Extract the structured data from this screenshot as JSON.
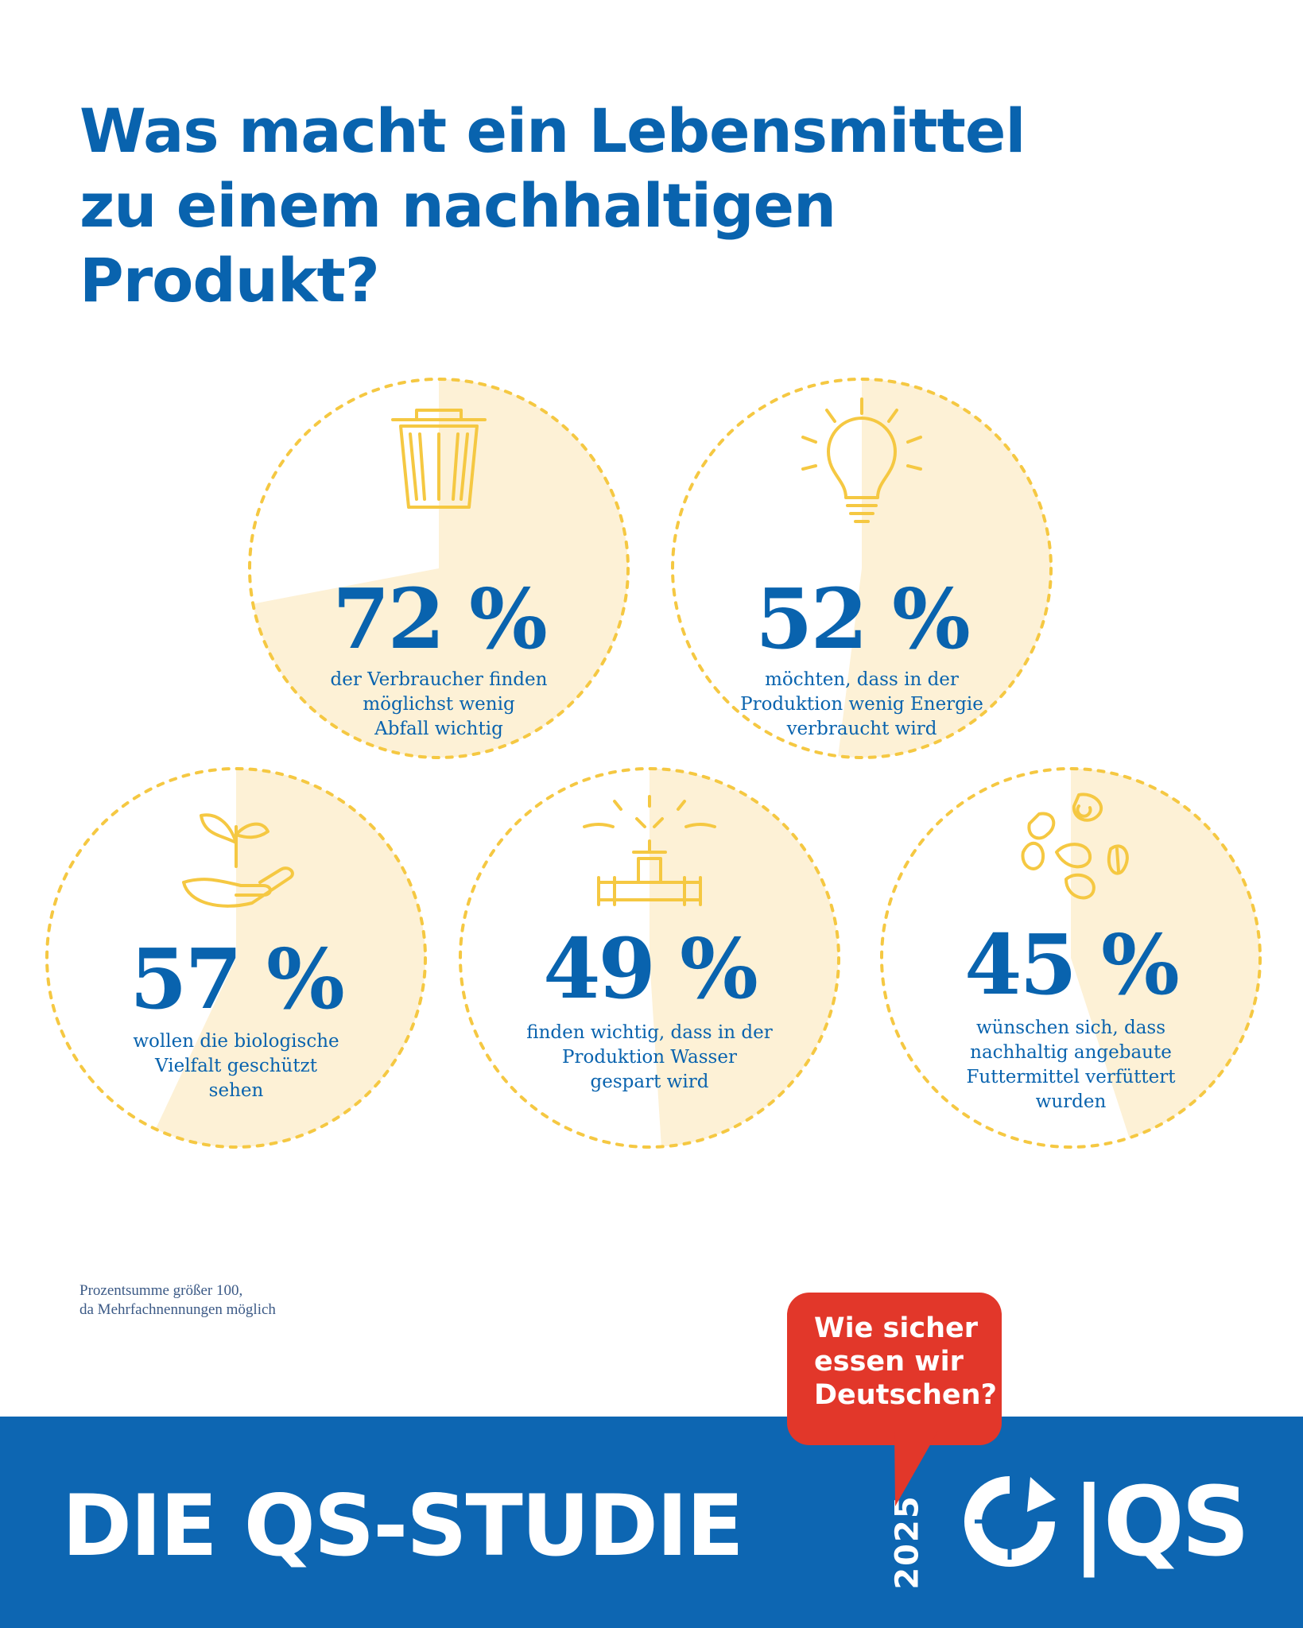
{
  "title_lines": [
    "Was macht ein Lebensmittel",
    "zu einem nachhaltigen",
    "Produkt?"
  ],
  "colors": {
    "blue": "#0963ae",
    "yellow": "#f5c842",
    "fill": "#fdf1d6",
    "banner": "#0d66b2",
    "bubble": "#e2372a"
  },
  "chart_data": {
    "type": "pie",
    "title": "Was macht ein Lebensmittel zu einem nachhaltigen Produkt?",
    "unit": "%",
    "items": [
      {
        "value": 72,
        "label": "72 %",
        "description": [
          "der Verbraucher finden",
          "möglichst wenig",
          "Abfall wichtig"
        ],
        "icon": "trash-can-icon"
      },
      {
        "value": 52,
        "label": "52 %",
        "description": [
          "möchten, dass in der",
          "Produktion wenig Energie",
          "verbraucht wird"
        ],
        "icon": "light-bulb-icon"
      },
      {
        "value": 57,
        "label": "57 %",
        "description": [
          "wollen die biologische",
          "Vielfalt geschützt",
          "sehen"
        ],
        "icon": "plant-in-hand-icon"
      },
      {
        "value": 49,
        "label": "49 %",
        "description": [
          "finden wichtig, dass in der",
          "Produktion Wasser",
          "gespart wird"
        ],
        "icon": "water-tap-icon"
      },
      {
        "value": 45,
        "label": "45 %",
        "description": [
          "wünschen sich, dass",
          "nachhaltig angebaute",
          "Futtermittel verfüttert",
          "wurden"
        ],
        "icon": "seeds-icon"
      }
    ]
  },
  "footnote_lines": [
    "Prozentsumme größer 100,",
    "da Mehrfachnennungen möglich"
  ],
  "bubble_lines": [
    "Wie sicher",
    "essen wir",
    "Deutschen?"
  ],
  "banner": {
    "title": "DIE QS-STUDIE",
    "year": "2025",
    "logo_text": "|QS"
  }
}
